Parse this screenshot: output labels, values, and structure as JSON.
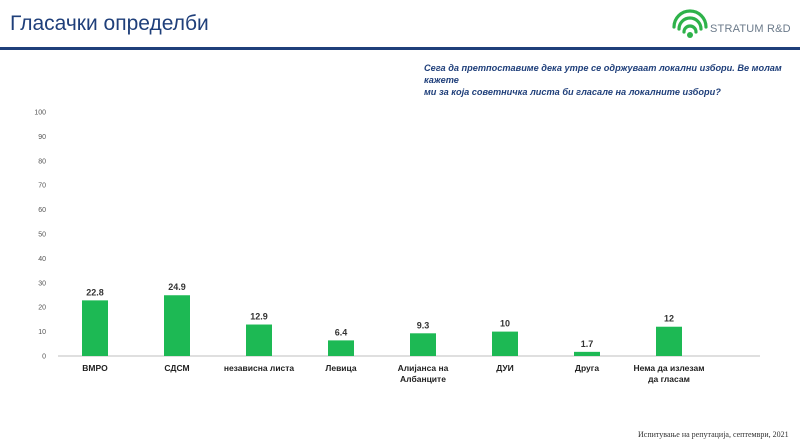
{
  "header": {
    "title": "Гласачки определби",
    "logo_text": "STRATUM R&D"
  },
  "question": {
    "line1": "Сега да претпоставиме дека утре се одржуваат локални избори. Ве молам кажете",
    "line2": "ми за која советничка листа би гласале на локалните избори?"
  },
  "footer": {
    "source": "Испитување на репутација, септември, 2021"
  },
  "colors": {
    "bar": "#1db954",
    "title": "#1f3f7a",
    "logo_green": "#2eb24a"
  },
  "chart_data": {
    "type": "bar",
    "categories": [
      "ВМРО",
      "СДСМ",
      "независна листа",
      "Левица",
      "Алијанса на Албанците",
      "ДУИ",
      "Друга",
      "Нема да излезам да гласам"
    ],
    "category_lines": [
      [
        "ВМРО"
      ],
      [
        "СДСМ"
      ],
      [
        "независна листа"
      ],
      [
        "Левица"
      ],
      [
        "Алијанса на",
        "Албанците"
      ],
      [
        "ДУИ"
      ],
      [
        "Друга"
      ],
      [
        "Нема да излезам",
        "да гласам"
      ]
    ],
    "values": [
      22.8,
      24.9,
      12.9,
      6.4,
      9.3,
      10,
      1.7,
      12
    ],
    "value_labels": [
      "22.8",
      "24.9",
      "12.9",
      "6.4",
      "9.3",
      "10",
      "1.7",
      "12"
    ],
    "ylim": [
      0,
      100
    ],
    "yticks": [
      0,
      10,
      20,
      30,
      40,
      50,
      60,
      70,
      80,
      90,
      100
    ],
    "grid": false,
    "title": "",
    "xlabel": "",
    "ylabel": ""
  }
}
